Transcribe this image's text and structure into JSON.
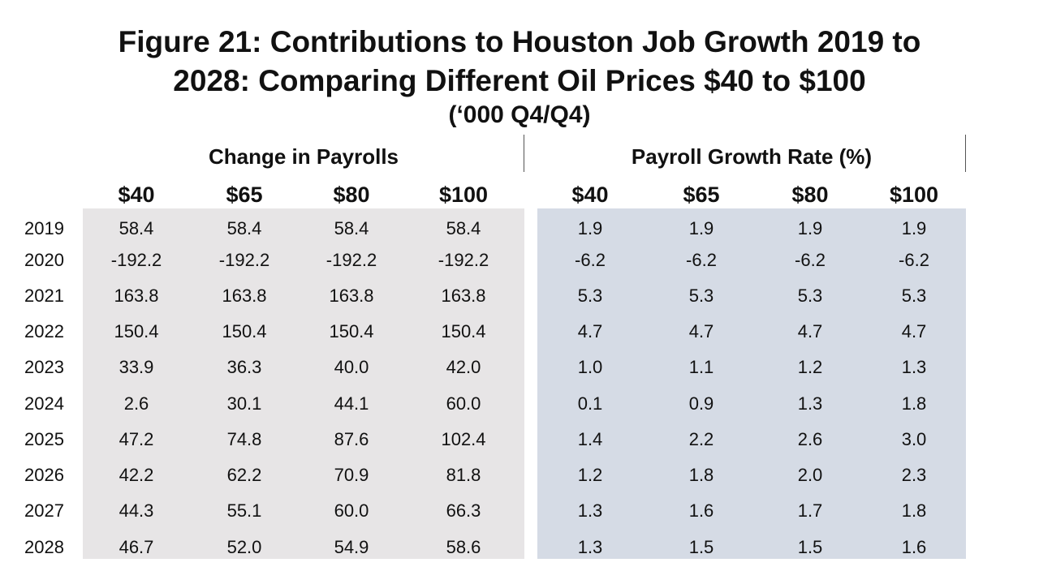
{
  "title": {
    "line1": "Figure 21: Contributions to Houston Job Growth 2019 to",
    "line2": "2028: Comparing Different Oil Prices $40 to $100",
    "line3": "(‘000 Q4/Q4)"
  },
  "groups": {
    "payrolls": "Change in Payrolls",
    "growth": "Payroll Growth Rate (%)"
  },
  "columns": [
    "$40",
    "$65",
    "$80",
    "$100",
    "$40",
    "$65",
    "$80",
    "$100"
  ],
  "rows": [
    {
      "year": "2019",
      "values": [
        "58.4",
        "58.4",
        "58.4",
        "58.4",
        "1.9",
        "1.9",
        "1.9",
        "1.9"
      ]
    },
    {
      "year": "2020",
      "values": [
        "-192.2",
        "-192.2",
        "-192.2",
        "-192.2",
        "-6.2",
        "-6.2",
        "-6.2",
        "-6.2"
      ]
    },
    {
      "year": "2021",
      "values": [
        "163.8",
        "163.8",
        "163.8",
        "163.8",
        "5.3",
        "5.3",
        "5.3",
        "5.3"
      ]
    },
    {
      "year": "2022",
      "values": [
        "150.4",
        "150.4",
        "150.4",
        "150.4",
        "4.7",
        "4.7",
        "4.7",
        "4.7"
      ]
    },
    {
      "year": "2023",
      "values": [
        "33.9",
        "36.3",
        "40.0",
        "42.0",
        "1.0",
        "1.1",
        "1.2",
        "1.3"
      ]
    },
    {
      "year": "2024",
      "values": [
        "2.6",
        "30.1",
        "44.1",
        "60.0",
        "0.1",
        "0.9",
        "1.3",
        "1.8"
      ]
    },
    {
      "year": "2025",
      "values": [
        "47.2",
        "74.8",
        "87.6",
        "102.4",
        "1.4",
        "2.2",
        "2.6",
        "3.0"
      ]
    },
    {
      "year": "2026",
      "values": [
        "42.2",
        "62.2",
        "70.9",
        "81.8",
        "1.2",
        "1.8",
        "2.0",
        "2.3"
      ]
    },
    {
      "year": "2027",
      "values": [
        "44.3",
        "55.1",
        "60.0",
        "66.3",
        "1.3",
        "1.6",
        "1.7",
        "1.8"
      ]
    },
    {
      "year": "2028",
      "values": [
        "46.7",
        "52.0",
        "54.9",
        "58.6",
        "1.3",
        "1.5",
        "1.5",
        "1.6"
      ]
    }
  ]
}
